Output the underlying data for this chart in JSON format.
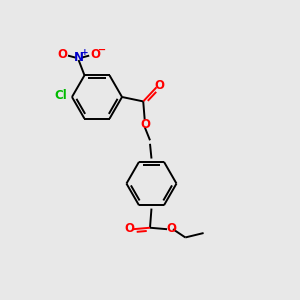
{
  "background_color": "#e8e8e8",
  "bond_color": "#000000",
  "oxygen_color": "#ff0000",
  "nitrogen_color": "#0000cc",
  "chlorine_color": "#00bb00",
  "figsize": [
    3.0,
    3.0
  ],
  "dpi": 100,
  "xlim": [
    0,
    10
  ],
  "ylim": [
    0,
    10
  ]
}
